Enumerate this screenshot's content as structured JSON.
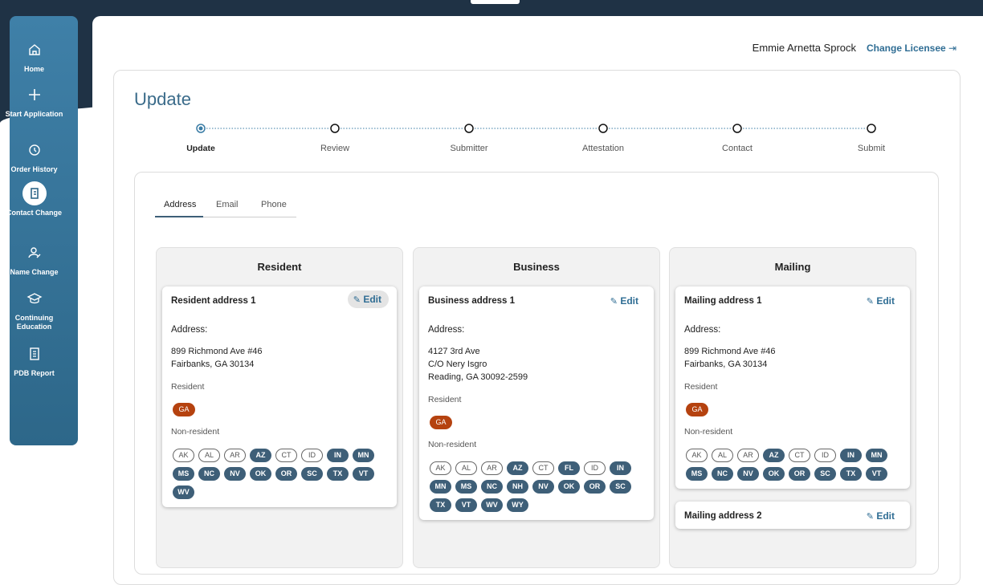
{
  "sidebar": [
    {
      "label": "Home",
      "active": false
    },
    {
      "label": "Start Application",
      "active": false
    },
    {
      "label": "Order History",
      "active": false
    },
    {
      "label": "Contact Change",
      "active": true
    },
    {
      "label": "Name Change",
      "active": false
    },
    {
      "label": "Continuing Education",
      "active": false
    },
    {
      "label": "PDB Report",
      "active": false
    }
  ],
  "header": {
    "user": "Emmie Arnetta Sprock",
    "link": "Change Licensee"
  },
  "title": "Update",
  "stepper": {
    "current": 0,
    "steps": [
      "Update",
      "Review",
      "Submitter",
      "Attestation",
      "Contact",
      "Submit"
    ]
  },
  "tabs": {
    "active": 0,
    "items": [
      "Address",
      "Email",
      "Phone"
    ]
  },
  "columns": [
    {
      "title": "Resident",
      "cards": [
        {
          "title": "Resident address 1",
          "edit": "Edit",
          "address_label": "Address:",
          "lines": [
            "899 Richmond Ave #46",
            "Fairbanks, GA 30134"
          ],
          "resident_label": "Resident",
          "resident_states": [
            "GA"
          ],
          "nonresident_label": "Non-resident",
          "nonresident_states": [
            {
              "code": "AK",
              "active": false
            },
            {
              "code": "AL",
              "active": false
            },
            {
              "code": "AR",
              "active": false
            },
            {
              "code": "AZ",
              "active": true
            },
            {
              "code": "CT",
              "active": false
            },
            {
              "code": "ID",
              "active": false
            },
            {
              "code": "IN",
              "active": true
            },
            {
              "code": "MN",
              "active": true
            },
            {
              "code": "MS",
              "active": true
            },
            {
              "code": "NC",
              "active": true
            },
            {
              "code": "NV",
              "active": true
            },
            {
              "code": "OK",
              "active": true
            },
            {
              "code": "OR",
              "active": true
            },
            {
              "code": "SC",
              "active": true
            },
            {
              "code": "TX",
              "active": true
            },
            {
              "code": "VT",
              "active": true
            },
            {
              "code": "WV",
              "active": true
            }
          ]
        }
      ]
    },
    {
      "title": "Business",
      "cards": [
        {
          "title": "Business address 1",
          "edit": "Edit",
          "address_label": "Address:",
          "lines": [
            "4127 3rd Ave",
            "C/O Nery Isgro",
            "Reading, GA 30092-2599"
          ],
          "resident_label": "Resident",
          "resident_states": [
            "GA"
          ],
          "nonresident_label": "Non-resident",
          "nonresident_states": [
            {
              "code": "AK",
              "active": false
            },
            {
              "code": "AL",
              "active": false
            },
            {
              "code": "AR",
              "active": false
            },
            {
              "code": "AZ",
              "active": true
            },
            {
              "code": "CT",
              "active": false
            },
            {
              "code": "FL",
              "active": true
            },
            {
              "code": "ID",
              "active": false
            },
            {
              "code": "IN",
              "active": true
            },
            {
              "code": "MN",
              "active": true
            },
            {
              "code": "MS",
              "active": true
            },
            {
              "code": "NC",
              "active": true
            },
            {
              "code": "NH",
              "active": true
            },
            {
              "code": "NV",
              "active": true
            },
            {
              "code": "OK",
              "active": true
            },
            {
              "code": "OR",
              "active": true
            },
            {
              "code": "SC",
              "active": true
            },
            {
              "code": "TX",
              "active": true
            },
            {
              "code": "VT",
              "active": true
            },
            {
              "code": "WV",
              "active": true
            },
            {
              "code": "WY",
              "active": true
            }
          ]
        }
      ]
    },
    {
      "title": "Mailing",
      "cards": [
        {
          "title": "Mailing address 1",
          "edit": "Edit",
          "address_label": "Address:",
          "lines": [
            "899 Richmond Ave #46",
            "Fairbanks, GA 30134"
          ],
          "resident_label": "Resident",
          "resident_states": [
            "GA"
          ],
          "nonresident_label": "Non-resident",
          "nonresident_states": [
            {
              "code": "AK",
              "active": false
            },
            {
              "code": "AL",
              "active": false
            },
            {
              "code": "AR",
              "active": false
            },
            {
              "code": "AZ",
              "active": true
            },
            {
              "code": "CT",
              "active": false
            },
            {
              "code": "ID",
              "active": false
            },
            {
              "code": "IN",
              "active": true
            },
            {
              "code": "MN",
              "active": true
            },
            {
              "code": "MS",
              "active": true
            },
            {
              "code": "NC",
              "active": true
            },
            {
              "code": "NV",
              "active": true
            },
            {
              "code": "OK",
              "active": true
            },
            {
              "code": "OR",
              "active": true
            },
            {
              "code": "SC",
              "active": true
            },
            {
              "code": "TX",
              "active": true
            },
            {
              "code": "VT",
              "active": true
            }
          ]
        },
        {
          "title": "Mailing address 2",
          "edit": "Edit"
        }
      ]
    }
  ]
}
